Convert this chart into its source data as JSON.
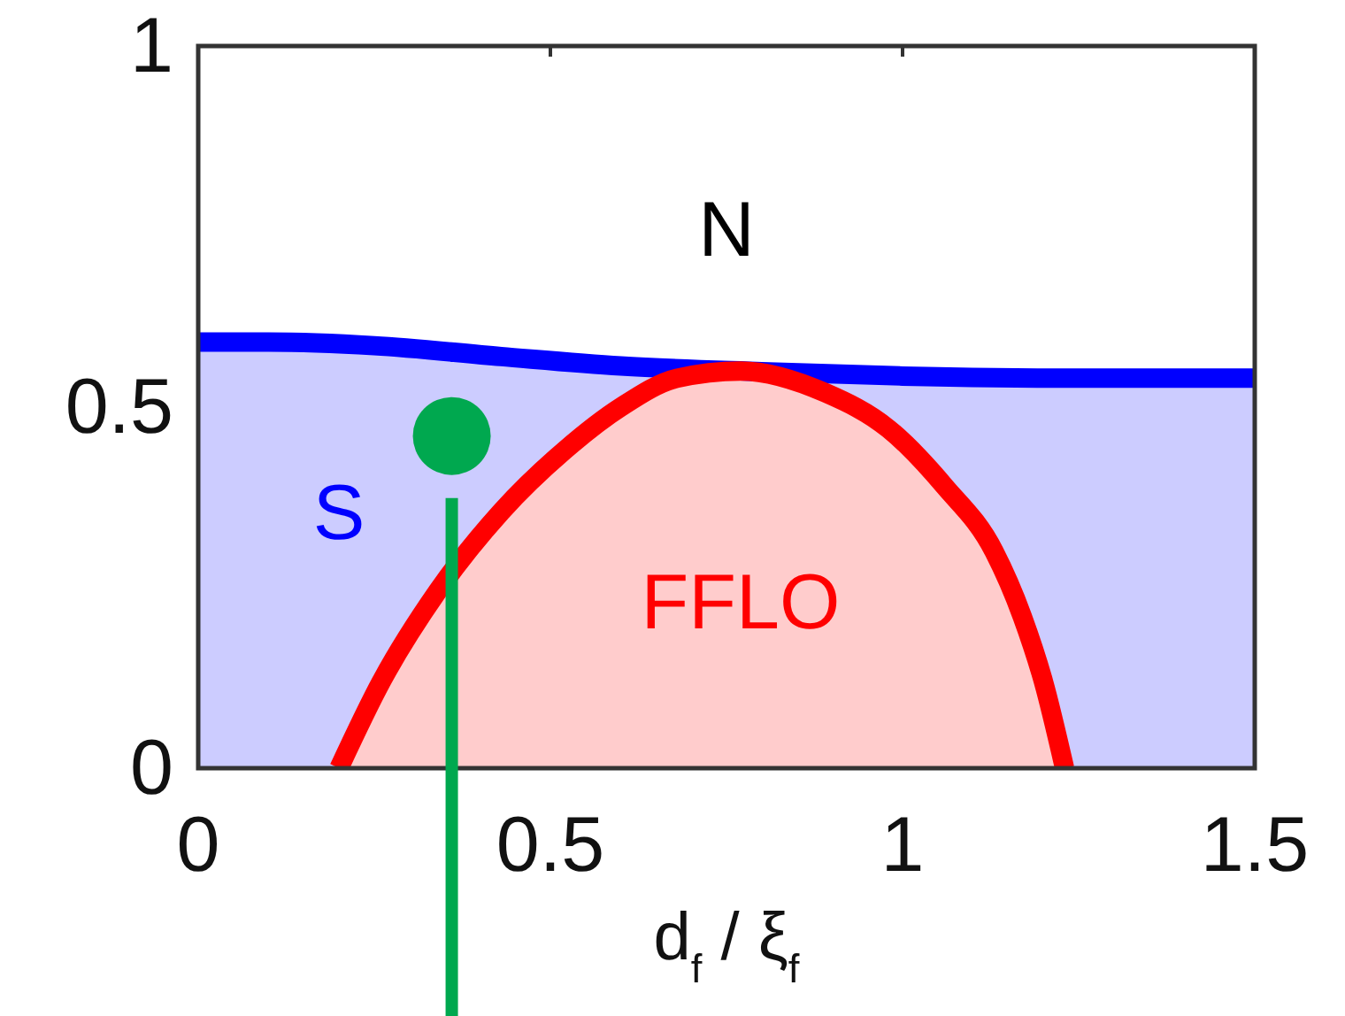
{
  "chart_data": {
    "type": "area",
    "xlabel": "d$_{f}$ / ξ$_{f}$",
    "xlim": [
      0,
      1.5
    ],
    "ylim": [
      0,
      1
    ],
    "xticks": [
      0,
      0.5,
      1,
      1.5
    ],
    "yticks": [
      0,
      0.5,
      1
    ],
    "series": [
      {
        "name": "S",
        "color": "#0000ff",
        "x": [
          0,
          0.1,
          0.25,
          0.43,
          0.6,
          0.8,
          1,
          1.25,
          1.5
        ],
        "values": [
          0.59,
          0.59,
          0.585,
          0.57,
          0.557,
          0.549,
          0.543,
          0.54,
          0.54
        ]
      },
      {
        "name": "FFLO",
        "color": "#ff0000",
        "x": [
          0.2,
          0.26,
          0.34,
          0.43,
          0.52,
          0.6,
          0.68,
          0.77,
          0.89,
          0.98,
          1.06,
          1.13,
          1.17,
          1.2,
          1.23
        ],
        "values": [
          0,
          0.12,
          0.245,
          0.355,
          0.44,
          0.5,
          0.54,
          0.55,
          0.52,
          0.47,
          0.39,
          0.3,
          0.21,
          0.12,
          0
        ]
      },
      {
        "type": "scatter",
        "marker": "circle",
        "color": "#00a84f",
        "x": [
          0.36
        ],
        "values": [
          0.46
        ]
      }
    ],
    "ref_lines": [
      {
        "axis": "x",
        "value": 0.36,
        "color": "#00a84f"
      }
    ],
    "annotations": [
      "N"
    ]
  }
}
